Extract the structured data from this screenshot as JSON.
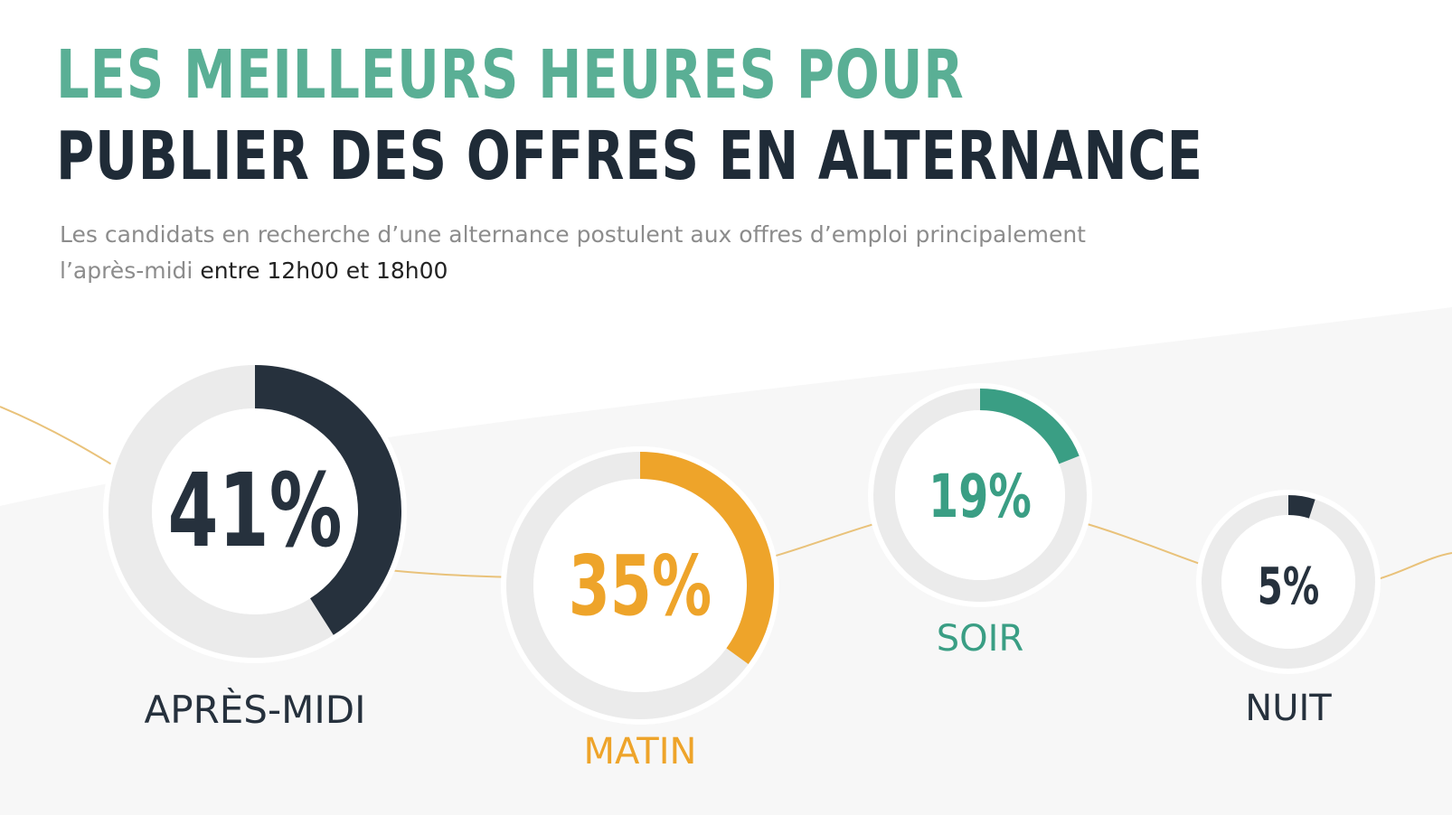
{
  "header": {
    "title_line1": "LES MEILLEURS HEURES POUR",
    "title_line2": "PUBLIER DES OFFRES EN ALTERNANCE",
    "subtitle_part1": "Les candidats en recherche d’une alternance postulent aux offres d’emploi principalement l’après-midi ",
    "subtitle_highlight": "entre 12h00 et 18h00"
  },
  "colors": {
    "title_green": "#5aaf95",
    "title_dark": "#1f2b37",
    "ring_track": "#ebebeb",
    "connector": "#e9c27a"
  },
  "chart_data": {
    "type": "pie",
    "title": "",
    "categories": [
      "APRÈS-MIDI",
      "MATIN",
      "SOIR",
      "NUIT"
    ],
    "values": [
      41,
      35,
      19,
      5
    ],
    "unit": "%",
    "value_labels": [
      "41%",
      "35%",
      "19%",
      "5%"
    ],
    "series_colors": [
      "#26313d",
      "#eea42a",
      "#3a9e84",
      "#26313d"
    ]
  }
}
